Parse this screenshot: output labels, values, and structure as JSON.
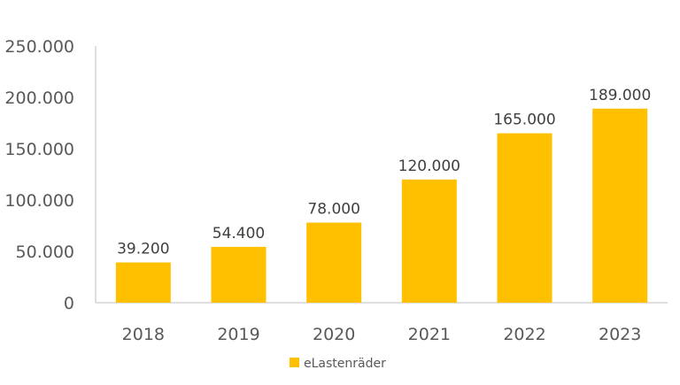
{
  "chart_data": {
    "type": "bar",
    "categories": [
      "2018",
      "2019",
      "2020",
      "2021",
      "2022",
      "2023"
    ],
    "series": [
      {
        "name": "eLastenräder",
        "values": [
          39200,
          54400,
          78000,
          120000,
          165000,
          189000
        ],
        "color": "#FFC000"
      }
    ],
    "data_labels": [
      "39.200",
      "54.400",
      "78.000",
      "120.000",
      "165.000",
      "189.000"
    ],
    "y_ticks": [
      {
        "value": 0,
        "label": "0"
      },
      {
        "value": 50000,
        "label": "50.000"
      },
      {
        "value": 100000,
        "label": "100.000"
      },
      {
        "value": 150000,
        "label": "150.000"
      },
      {
        "value": 200000,
        "label": "200.000"
      },
      {
        "value": 250000,
        "label": "250.000"
      }
    ],
    "ylim": [
      0,
      250000
    ],
    "grid": false,
    "legend_position": "bottom"
  }
}
